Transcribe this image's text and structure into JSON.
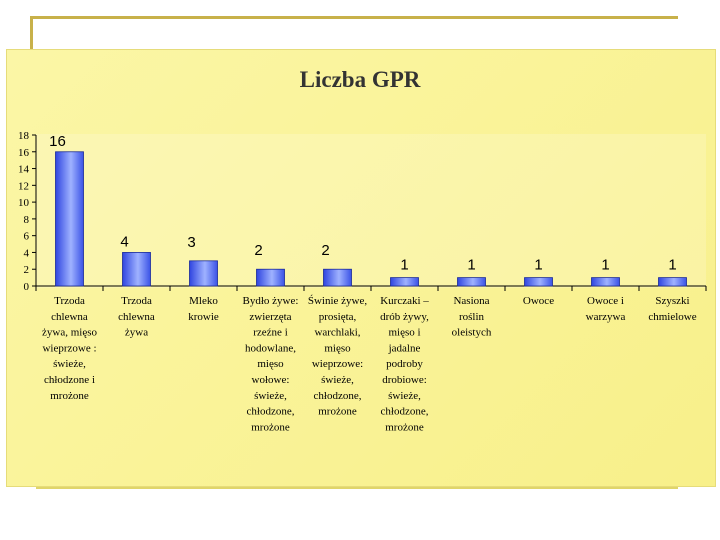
{
  "chart_data": {
    "type": "bar",
    "title": "Liczba GPR",
    "xlabel": "",
    "ylabel": "",
    "ylim": [
      0,
      18
    ],
    "yticks": [
      "0",
      "2",
      "4",
      "6",
      "8",
      "10",
      "12",
      "14",
      "16",
      "18"
    ],
    "categories": [
      "Trzoda chlewna żywa, mięso wieprzowe : świeże, chłodzone i mrożone",
      "Trzoda chlewna żywa",
      "Mleko krowie",
      "Bydło żywe: zwierzęta rzeźne i hodowlane, mięso wołowe: świeże, chłodzone, mrożone",
      "Świnie żywe, prosięta, warchlaki, mięso wieprzowe: świeże, chłodzone, mrożone",
      "Kurczaki – drób żywy, mięso i jadalne podroby drobiowe: świeże, chłodzone, mrożone",
      "Nasiona roślin oleistych",
      "Owoce",
      "Owoce i warzywa",
      "Szyszki chmielowe"
    ],
    "category_lines": [
      [
        "Trzoda",
        "chlewna",
        "żywa, mięso",
        "wieprzowe :",
        "świeże,",
        "chłodzone i",
        "mrożone"
      ],
      [
        "Trzoda",
        "chlewna",
        "żywa"
      ],
      [
        "Mleko",
        "krowie"
      ],
      [
        "Bydło żywe:",
        "zwierzęta",
        "rzeźne i",
        "hodowlane,",
        "mięso",
        "wołowe:",
        "świeże,",
        "chłodzone,",
        "mrożone"
      ],
      [
        "Świnie żywe,",
        "prosięta,",
        "warchlaki,",
        "mięso",
        "wieprzowe:",
        "świeże,",
        "chłodzone,",
        "mrożone"
      ],
      [
        "Kurczaki –",
        "drób żywy,",
        "mięso i",
        "jadalne",
        "podroby",
        "drobiowe:",
        "świeże,",
        "chłodzone,",
        "mrożone"
      ],
      [
        "Nasiona",
        "roślin",
        "oleistych"
      ],
      [
        "Owoce"
      ],
      [
        "Owoce i",
        "warzywa"
      ],
      [
        "Szyszki",
        "chmielowe"
      ]
    ],
    "values": [
      16,
      4,
      3,
      2,
      2,
      1,
      1,
      1,
      1,
      1
    ],
    "data_labels": [
      "16",
      "4",
      "3",
      "2",
      "2",
      "1",
      "1",
      "1",
      "1",
      "1"
    ],
    "grid": false,
    "legend": "none"
  },
  "colors": {
    "bar_dark": "#2f45e0",
    "bar_light": "#c9d6ff",
    "background": "#fbf4a0",
    "frame": "#c8b14a"
  }
}
